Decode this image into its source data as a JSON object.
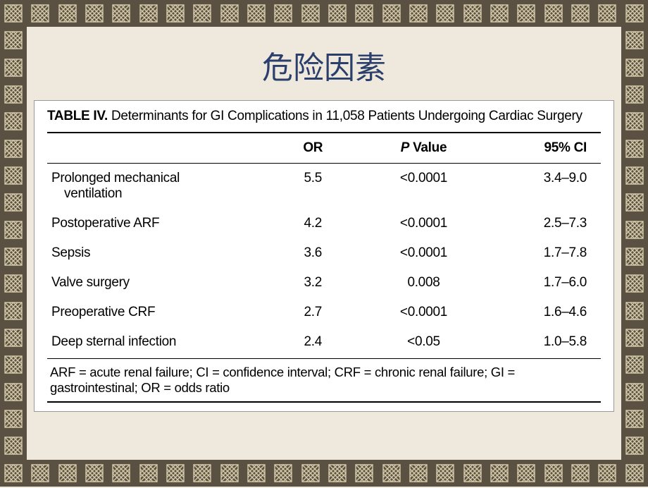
{
  "colors": {
    "background": "#efe9dd",
    "border_bg": "#5a5142",
    "knot_stroke": "#d4c9a8",
    "title_color": "#2a3f6b",
    "table_bg": "#ffffff",
    "text_color": "#000000",
    "rule_color": "#000000"
  },
  "slide": {
    "title": "危险因素",
    "title_fontsize": 44
  },
  "table": {
    "caption_label": "TABLE IV.",
    "caption_text": "Determinants for GI Complications in 11,058 Patients Undergoing Cardiac Surgery",
    "columns": [
      "",
      "OR",
      "P Value",
      "95% CI"
    ],
    "pvalue_prefix_italic": "P",
    "rows": [
      {
        "label": "Prolonged mechanical",
        "label_cont": "ventilation",
        "or": "5.5",
        "p": "<0.0001",
        "ci": "3.4–9.0"
      },
      {
        "label": "Postoperative ARF",
        "label_cont": "",
        "or": "4.2",
        "p": "<0.0001",
        "ci": "2.5–7.3"
      },
      {
        "label": "Sepsis",
        "label_cont": "",
        "or": "3.6",
        "p": "<0.0001",
        "ci": "1.7–7.8"
      },
      {
        "label": "Valve surgery",
        "label_cont": "",
        "or": "3.2",
        "p": "0.008",
        "ci": "1.7–6.0"
      },
      {
        "label": "Preoperative CRF",
        "label_cont": "",
        "or": "2.7",
        "p": "<0.0001",
        "ci": "1.6–4.6"
      },
      {
        "label": "Deep sternal infection",
        "label_cont": "",
        "or": "2.4",
        "p": "<0.05",
        "ci": "1.0–5.8"
      }
    ],
    "footnote": "ARF = acute renal failure; CI = confidence interval; CRF = chronic renal failure; GI = gastrointestinal; OR = odds ratio",
    "body_fontsize": 19
  }
}
